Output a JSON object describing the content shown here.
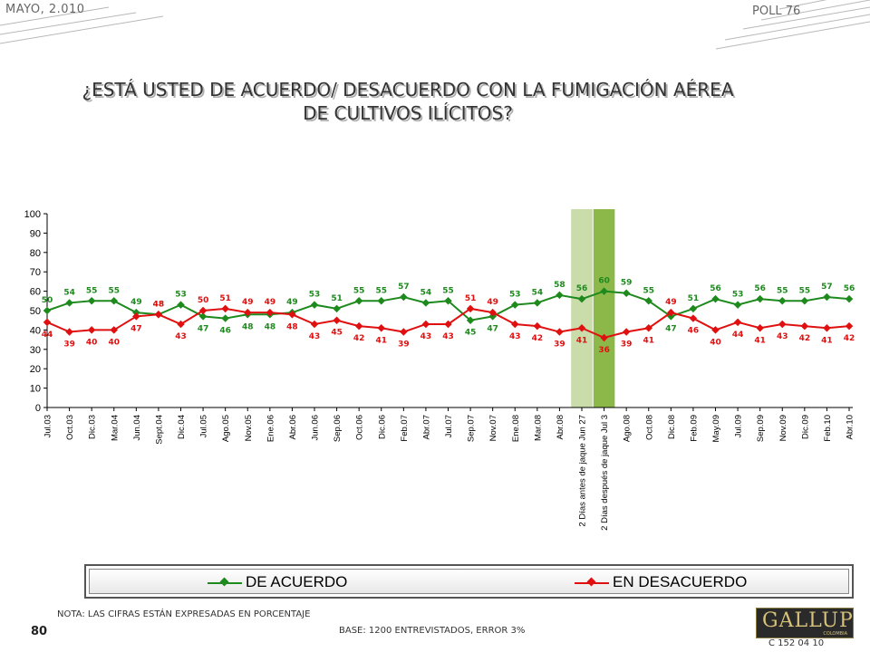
{
  "header": {
    "date": "MAYO, 2.010",
    "poll": "POLL 76"
  },
  "title": {
    "line1": "¿ESTÁ USTED DE ACUERDO/ DESACUERDO CON LA FUMIGACIÓN AÉREA",
    "line2": "DE CULTIVOS ILÍCITOS?"
  },
  "colors": {
    "acuerdo": "#1e8a1e",
    "desacuerdo": "#e01010",
    "highlight_before": "#c9dcaa",
    "highlight_after": "#8cb84a"
  },
  "chart_data": {
    "type": "line",
    "categories": [
      "Jul.03",
      "Oct.03",
      "Dic.03",
      "Mar.04",
      "Jun.04",
      "Sept.04",
      "Dic.04",
      "Jul.05",
      "Ago.05",
      "Nov.05",
      "Ene.06",
      "Abr.06",
      "Jun.06",
      "Sep.06",
      "Oct.06",
      "Dic.06",
      "Feb.07",
      "Abr.07",
      "Jul.07",
      "Sep.07",
      "Nov.07",
      "Ene.08",
      "Mar.08",
      "Abr.08",
      "2 Días antes de jaque Jun 27",
      "2 Días después de jaque Jul 3",
      "Ago.08",
      "Oct.08",
      "Dic.08",
      "Feb.09",
      "May.09",
      "Jul.09",
      "Sep.09",
      "Nov.09",
      "Dic.09",
      "Feb.10",
      "Abr.10"
    ],
    "series": [
      {
        "name": "DE ACUERDO",
        "values": [
          50,
          54,
          55,
          55,
          49,
          48,
          53,
          47,
          46,
          48,
          48,
          49,
          53,
          51,
          55,
          55,
          57,
          54,
          55,
          45,
          47,
          53,
          54,
          58,
          56,
          60,
          59,
          55,
          47,
          51,
          56,
          53,
          56,
          55,
          55,
          57,
          56
        ]
      },
      {
        "name": "EN DESACUERDO",
        "values": [
          44,
          39,
          40,
          40,
          47,
          48,
          43,
          50,
          51,
          49,
          49,
          48,
          43,
          45,
          42,
          41,
          39,
          43,
          43,
          51,
          49,
          43,
          42,
          39,
          41,
          36,
          39,
          41,
          49,
          46,
          40,
          44,
          41,
          43,
          42,
          41,
          42
        ]
      }
    ],
    "highlighted_categories": [
      "2 Días antes de jaque Jun 27",
      "2 Días después de jaque Jul 3"
    ],
    "y_ticks": [
      0,
      10,
      20,
      30,
      40,
      50,
      60,
      70,
      80,
      90,
      100
    ],
    "ylim": [
      0,
      100
    ],
    "grid": false,
    "legend_position": "bottom"
  },
  "legend": {
    "acuerdo": "DE ACUERDO",
    "desacuerdo": "EN DESACUERDO"
  },
  "footer": {
    "nota": "NOTA: LAS CIFRAS ESTÁN EXPRESADAS EN PORCENTAJE",
    "base": "BASE: 1200 ENTREVISTADOS, ERROR 3%",
    "page": "80",
    "code": "C 152 04 10",
    "logo": "GALLUP",
    "logo_sub": "COLOMBIA"
  }
}
